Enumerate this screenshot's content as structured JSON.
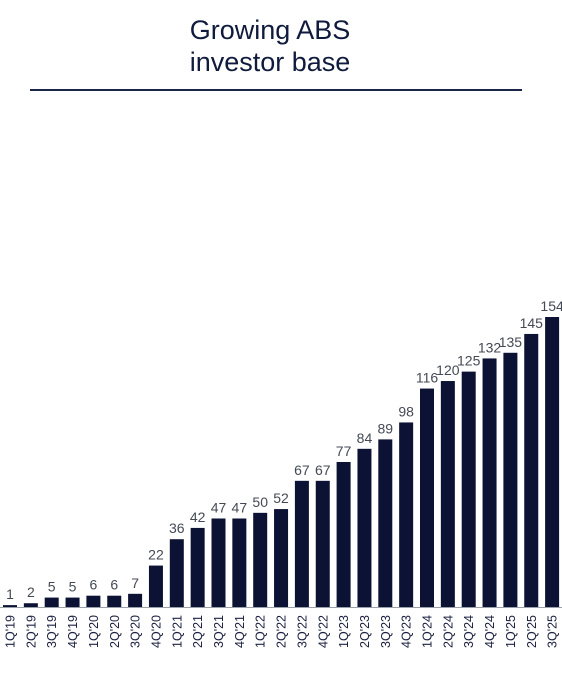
{
  "title_line1": "Growing ABS",
  "title_line2": "investor base",
  "colors": {
    "bar": "#0c1233",
    "title": "#0f1a3d",
    "rule": "#1b2548"
  },
  "chart_data": {
    "type": "bar",
    "title": "Growing ABS investor base",
    "xlabel": "",
    "ylabel": "",
    "ylim": [
      0,
      154
    ],
    "grid": false,
    "categories": [
      "1Q'19",
      "2Q'19",
      "3Q'19",
      "4Q'19",
      "1Q'20",
      "2Q'20",
      "3Q'20",
      "4Q'20",
      "1Q'21",
      "2Q'21",
      "3Q'21",
      "4Q'21",
      "1Q'22",
      "2Q'22",
      "3Q'22",
      "4Q'22",
      "1Q'23",
      "2Q'23",
      "3Q'23",
      "4Q'23",
      "1Q'24",
      "2Q'24",
      "3Q'24",
      "4Q'24",
      "1Q'25",
      "2Q'25",
      "3Q'25"
    ],
    "values": [
      1,
      2,
      5,
      5,
      6,
      6,
      7,
      22,
      36,
      42,
      47,
      47,
      50,
      52,
      67,
      67,
      77,
      84,
      89,
      98,
      116,
      120,
      125,
      132,
      135,
      145,
      154
    ]
  }
}
